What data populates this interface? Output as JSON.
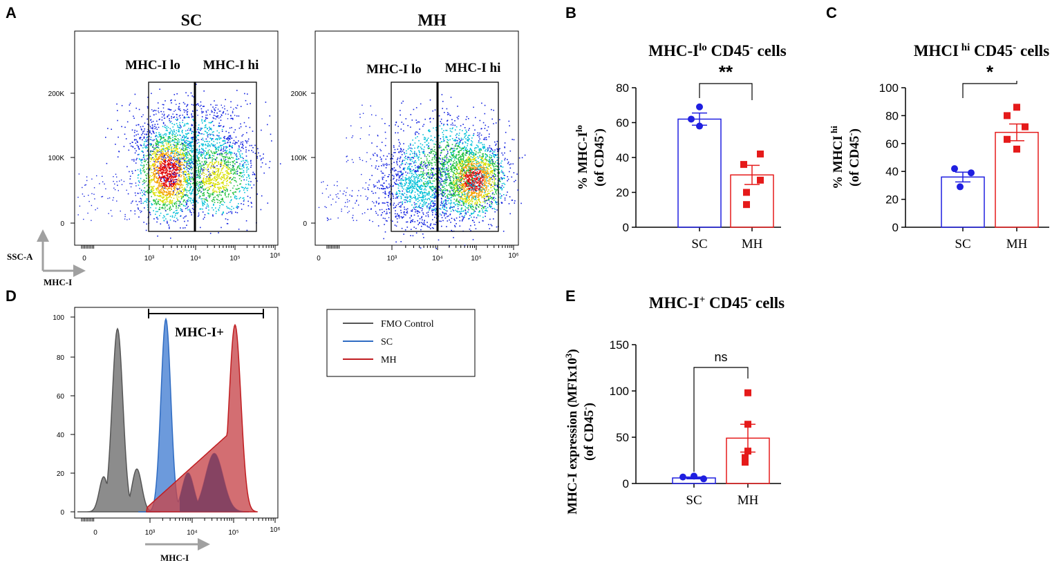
{
  "chart_data": [
    {
      "panel": "A",
      "type": "scatter",
      "subtype": "flow-cytometry-dot-plot",
      "xlabel": "MHC-I",
      "ylabel": "SSC-A",
      "x_ticks": [
        "0",
        "10³",
        "10⁴",
        "10⁵",
        "10⁶"
      ],
      "y_ticks": [
        "0",
        "100K",
        "200K"
      ],
      "gates": [
        "MHC-I lo",
        "MHC-I hi"
      ],
      "plots": [
        {
          "title": "SC",
          "gate_labels": [
            "MHC-I lo",
            "MHC-I hi"
          ]
        },
        {
          "title": "MH",
          "gate_labels": [
            "MHC-I lo",
            "MHC-I hi"
          ]
        }
      ]
    },
    {
      "panel": "B",
      "type": "bar",
      "title_main": "MHC-I",
      "title_sup": "lo",
      "title_rest": " CD45",
      "title_sup2": "-",
      "title_end": " cells",
      "ylabel_line1": "% MHC-I",
      "ylabel_line1_sup": "lo",
      "ylabel_line2": "(of CD45",
      "ylabel_line2_sup": "-",
      "ylabel_line2_end": ")",
      "categories": [
        "SC",
        "MH"
      ],
      "values": [
        62,
        30
      ],
      "errors": [
        3.5,
        5.5
      ],
      "points": [
        [
          69,
          62,
          58
        ],
        [
          42,
          36,
          27,
          20,
          13
        ]
      ],
      "ylim": [
        0,
        80
      ],
      "yticks": [
        "0",
        "20",
        "40",
        "60",
        "80"
      ],
      "significance": "**"
    },
    {
      "panel": "C",
      "type": "bar",
      "title_main": "MHCI",
      "title_sup": " hi",
      "title_rest": " CD45",
      "title_sup2": "-",
      "title_end": " cells",
      "ylabel_line1": "% MHCI",
      "ylabel_line1_sup": " hi",
      "ylabel_line2": "(of CD45",
      "ylabel_line2_sup": "-",
      "ylabel_line2_end": ")",
      "categories": [
        "SC",
        "MH"
      ],
      "values": [
        36,
        68
      ],
      "errors": [
        3.5,
        6
      ],
      "points": [
        [
          42,
          39,
          29
        ],
        [
          86,
          80,
          72,
          63,
          56
        ]
      ],
      "ylim": [
        0,
        100
      ],
      "yticks": [
        "0",
        "20",
        "40",
        "60",
        "80",
        "100"
      ],
      "significance": "*"
    },
    {
      "panel": "D",
      "type": "area",
      "subtype": "histogram-overlay",
      "xlabel": "MHC-I",
      "x_ticks": [
        "0",
        "10³",
        "10⁴",
        "10⁵",
        "10⁶"
      ],
      "y_ticks": [
        "0",
        "20",
        "40",
        "60",
        "80",
        "100"
      ],
      "gate_label": "MHC-I+",
      "legend": [
        {
          "name": "FMO Control",
          "color": "#555555"
        },
        {
          "name": "SC",
          "color": "#2e6bc2"
        },
        {
          "name": "MH",
          "color": "#c01c20"
        }
      ],
      "legend_position": "right"
    },
    {
      "panel": "E",
      "type": "bar",
      "title_main": "MHC-I",
      "title_sup": "+",
      "title_rest": " CD45",
      "title_sup2": "-",
      "title_end": " cells",
      "ylabel_line1": "MHC-I expression (MFIx10",
      "ylabel_line1_sup": "3",
      "ylabel_line1_end": ")",
      "ylabel_line2": "(of CD45",
      "ylabel_line2_sup": "-",
      "ylabel_line2_end": ")",
      "categories": [
        "SC",
        "MH"
      ],
      "values": [
        6,
        49
      ],
      "errors": [
        1,
        15
      ],
      "points": [
        [
          8,
          7,
          5
        ],
        [
          98,
          64,
          35,
          28,
          23
        ]
      ],
      "ylim": [
        0,
        150
      ],
      "yticks": [
        "0",
        "50",
        "100",
        "150"
      ],
      "significance": "ns"
    }
  ],
  "colors": {
    "sc": "#1f1fe0",
    "mh": "#e51a1a",
    "fmo_fill": "#8c8c8c",
    "sc_fill": "#5c8fd8",
    "mh_fill": "#c6454a",
    "overlap_fill": "#7a3f60"
  }
}
